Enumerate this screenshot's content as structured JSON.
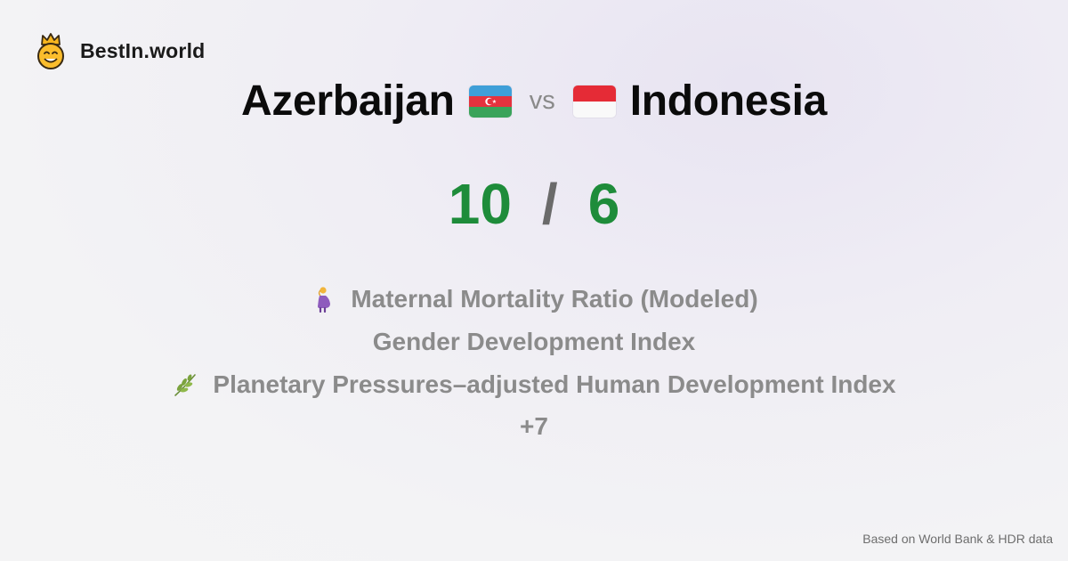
{
  "brand": {
    "name": "BestIn.world",
    "logo_icon": "crowned-smiley-icon"
  },
  "comparison": {
    "country_a": {
      "name": "Azerbaijan",
      "flag_icon": "azerbaijan-flag-icon"
    },
    "vs_label": "vs",
    "country_b": {
      "name": "Indonesia",
      "flag_icon": "indonesia-flag-icon"
    }
  },
  "score": {
    "a": "10",
    "separator": "/",
    "b": "6",
    "color": "#1e8c3a"
  },
  "metrics": [
    {
      "label": "Maternal Mortality Ratio (Modeled)",
      "icon": "pregnant-woman-icon"
    },
    {
      "label": "Gender Development Index",
      "icon": ""
    },
    {
      "label": "Planetary Pressures–adjusted Human Development Index",
      "icon": "herb-icon"
    }
  ],
  "more_label": "+7",
  "source_note": "Based on World Bank & HDR data"
}
